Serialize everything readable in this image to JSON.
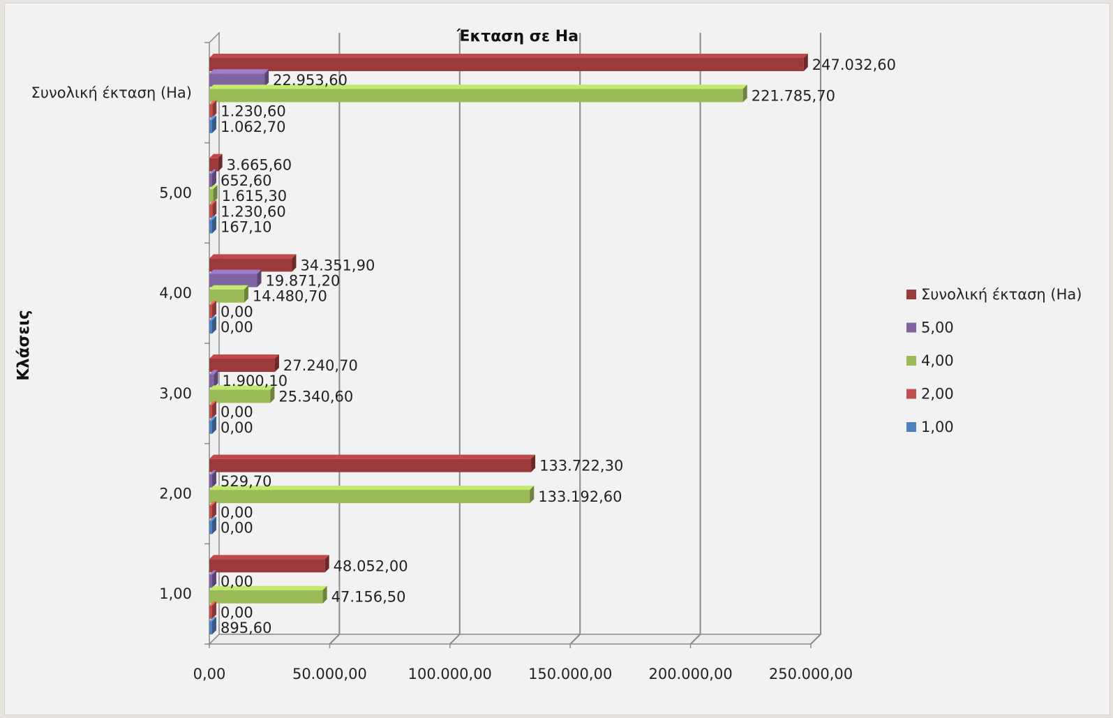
{
  "chart_data": {
    "type": "bar",
    "orientation": "horizontal",
    "title": "Έκταση σε Ha",
    "ylabel": "Κλάσεις",
    "xlabel": "",
    "xlim": [
      0,
      250000
    ],
    "x_ticks": [
      "0,00",
      "50.000,00",
      "100.000,00",
      "150.000,00",
      "200.000,00",
      "250.000,00"
    ],
    "categories": [
      "1,00",
      "2,00",
      "3,00",
      "4,00",
      "5,00",
      "Συνολική έκταση (Ha)"
    ],
    "series": [
      {
        "name": "Συνολική έκταση (Ha)",
        "color": "#9b3a3a",
        "values": [
          48052.0,
          133722.3,
          27240.7,
          34351.9,
          3665.6,
          247032.6
        ],
        "labels": [
          "48.052,00",
          "133.722,30",
          "27.240,70",
          "34.351,90",
          "3.665,60",
          "247.032,60"
        ]
      },
      {
        "name": "5,00",
        "color": "#8064a2",
        "values": [
          0.0,
          529.7,
          1900.1,
          19871.2,
          652.6,
          22953.6
        ],
        "labels": [
          "0,00",
          "529,70",
          "1.900,10",
          "19.871,20",
          "652,60",
          "22.953,60"
        ]
      },
      {
        "name": "4,00",
        "color": "#9bbb59",
        "values": [
          47156.5,
          133192.6,
          25340.6,
          14480.7,
          1615.3,
          221785.7
        ],
        "labels": [
          "47.156,50",
          "133.192,60",
          "25.340,60",
          "14.480,70",
          "1.615,30",
          "221.785,70"
        ]
      },
      {
        "name": "2,00",
        "color": "#c0504d",
        "values": [
          0.0,
          0.0,
          0.0,
          0.0,
          1230.6,
          1230.6
        ],
        "labels": [
          "0,00",
          "0,00",
          "0,00",
          "0,00",
          "1.230,60",
          "1.230,60"
        ]
      },
      {
        "name": "1,00",
        "color": "#4f81bd",
        "values": [
          895.6,
          0.0,
          0.0,
          0.0,
          167.1,
          1062.7
        ],
        "labels": [
          "895,60",
          "0,00",
          "0,00",
          "0,00",
          "167,10",
          "1.062,70"
        ]
      }
    ],
    "legend_position": "right",
    "grid": true,
    "style": "3d-clustered"
  }
}
